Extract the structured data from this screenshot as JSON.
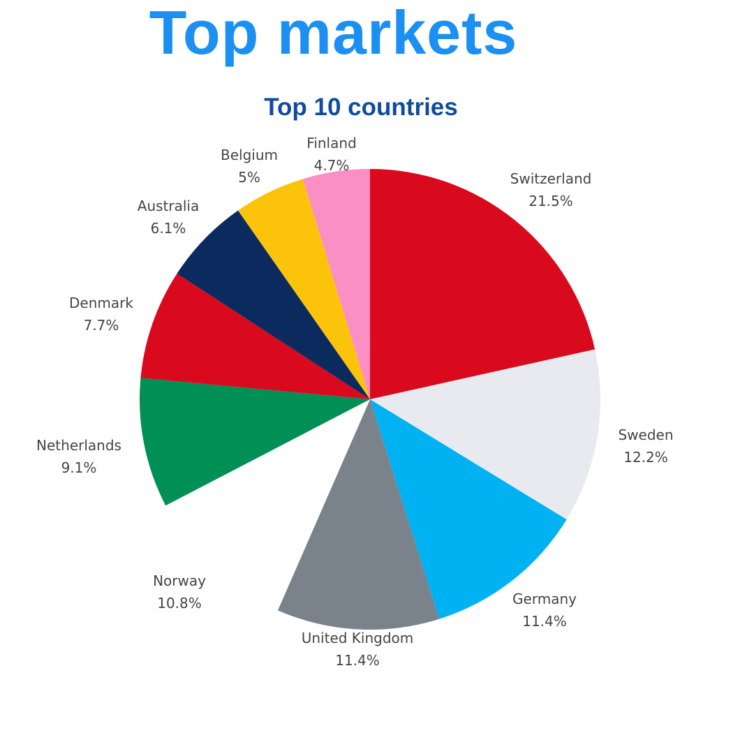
{
  "chart_data": {
    "type": "pie",
    "title": "Top markets",
    "subtitle": "Top 10 countries",
    "slices": [
      {
        "label": "Switzerland",
        "value": 21.5,
        "display": "21.5%",
        "color": "#d90a1e"
      },
      {
        "label": "Sweden",
        "value": 12.2,
        "display": "12.2%",
        "color": "#e8eaef"
      },
      {
        "label": "Germany",
        "value": 11.4,
        "display": "11.4%",
        "color": "#00b2f2"
      },
      {
        "label": "United Kingdom",
        "value": 11.4,
        "display": "11.4%",
        "color": "#7a838c"
      },
      {
        "label": "Norway",
        "value": 10.8,
        "display": "10.8%",
        "color": "#ffffff"
      },
      {
        "label": "Netherlands",
        "value": 9.1,
        "display": "9.1%",
        "color": "#008f55"
      },
      {
        "label": "Denmark",
        "value": 7.7,
        "display": "7.7%",
        "color": "#d90a1e"
      },
      {
        "label": "Australia",
        "value": 6.1,
        "display": "6.1%",
        "color": "#0b2b5e"
      },
      {
        "label": "Belgium",
        "value": 5,
        "display": "5%",
        "color": "#fcc30b"
      },
      {
        "label": "Finland",
        "value": 4.7,
        "display": "4.7%",
        "color": "#f98fc4"
      }
    ]
  }
}
